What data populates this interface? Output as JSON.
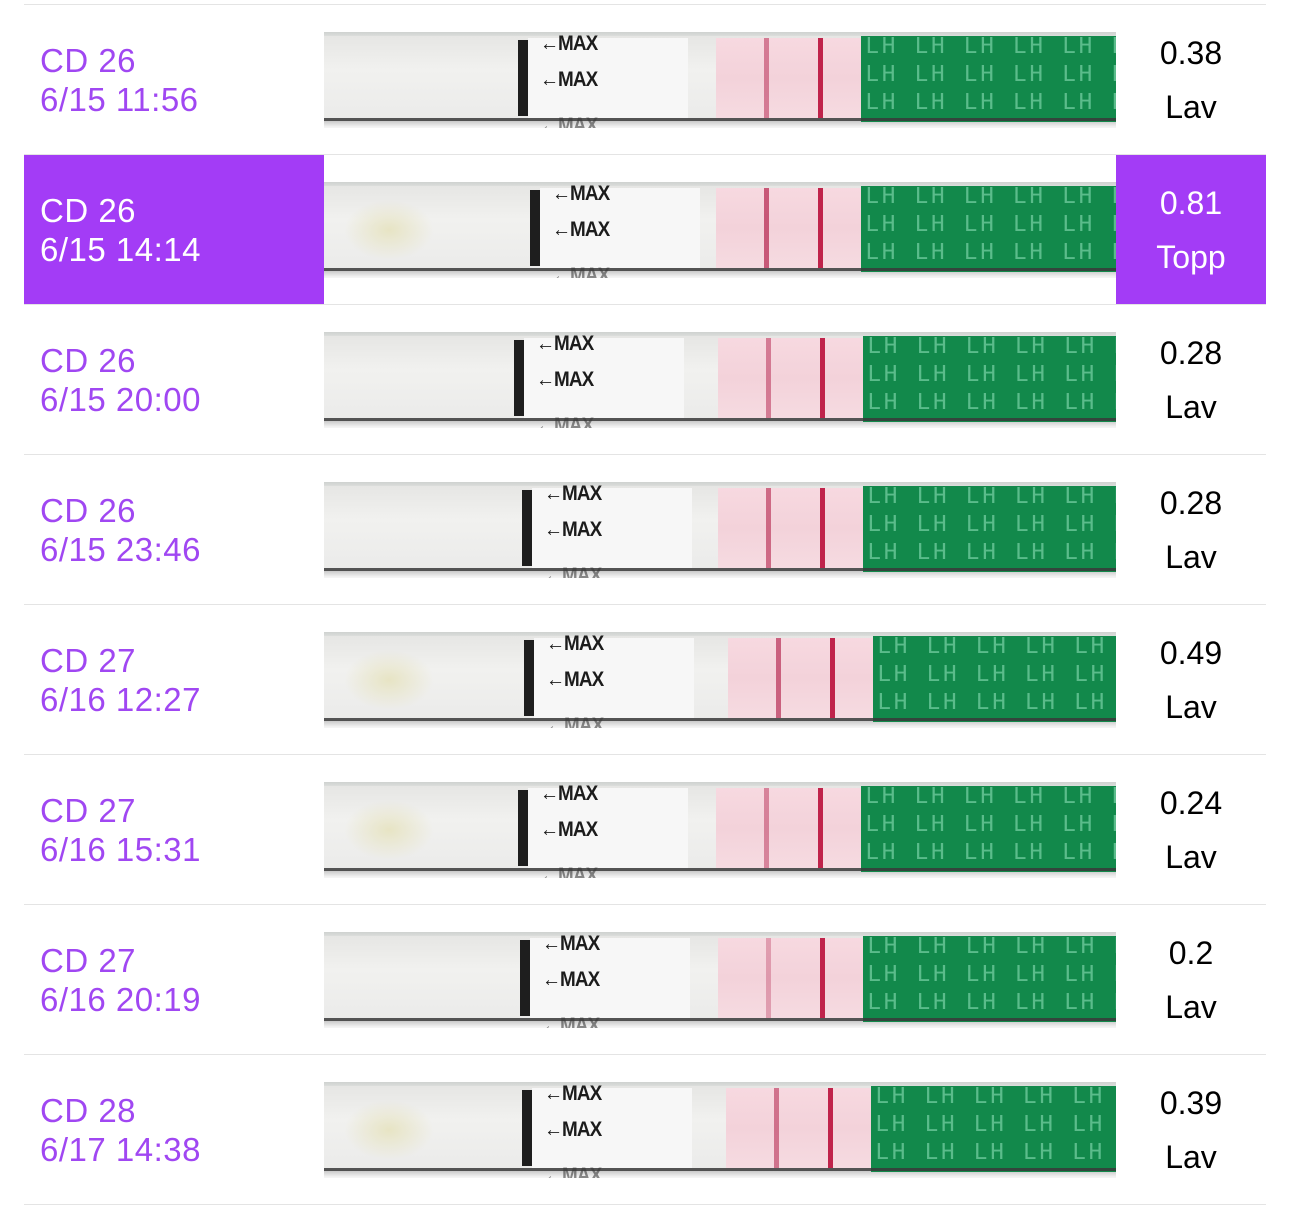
{
  "tests": [
    {
      "cycle_day": "CD 26",
      "datetime": "6/15 11:56",
      "value": "0.38",
      "result": "Lav",
      "highlighted": false
    },
    {
      "cycle_day": "CD 26",
      "datetime": "6/15 14:14",
      "value": "0.81",
      "result": "Topp",
      "highlighted": true
    },
    {
      "cycle_day": "CD 26",
      "datetime": "6/15 20:00",
      "value": "0.28",
      "result": "Lav",
      "highlighted": false
    },
    {
      "cycle_day": "CD 26",
      "datetime": "6/15 23:46",
      "value": "0.28",
      "result": "Lav",
      "highlighted": false
    },
    {
      "cycle_day": "CD 27",
      "datetime": "6/16 12:27",
      "value": "0.49",
      "result": "Lav",
      "highlighted": false
    },
    {
      "cycle_day": "CD 27",
      "datetime": "6/16 15:31",
      "value": "0.24",
      "result": "Lav",
      "highlighted": false
    },
    {
      "cycle_day": "CD 27",
      "datetime": "6/16 20:19",
      "value": "0.2",
      "result": "Lav",
      "highlighted": false
    },
    {
      "cycle_day": "CD 28",
      "datetime": "6/17 14:38",
      "value": "0.39",
      "result": "Lav",
      "highlighted": false
    }
  ],
  "strip": {
    "arrow_label": "←MAX",
    "handle_text": "LH",
    "handle_color": "#12894b",
    "window_color": "#f3d2da",
    "test_line_color": "#b82e55",
    "control_line_color": "#c0234b"
  },
  "colors": {
    "accent": "#a047f2",
    "highlight": "#a33cf6"
  }
}
